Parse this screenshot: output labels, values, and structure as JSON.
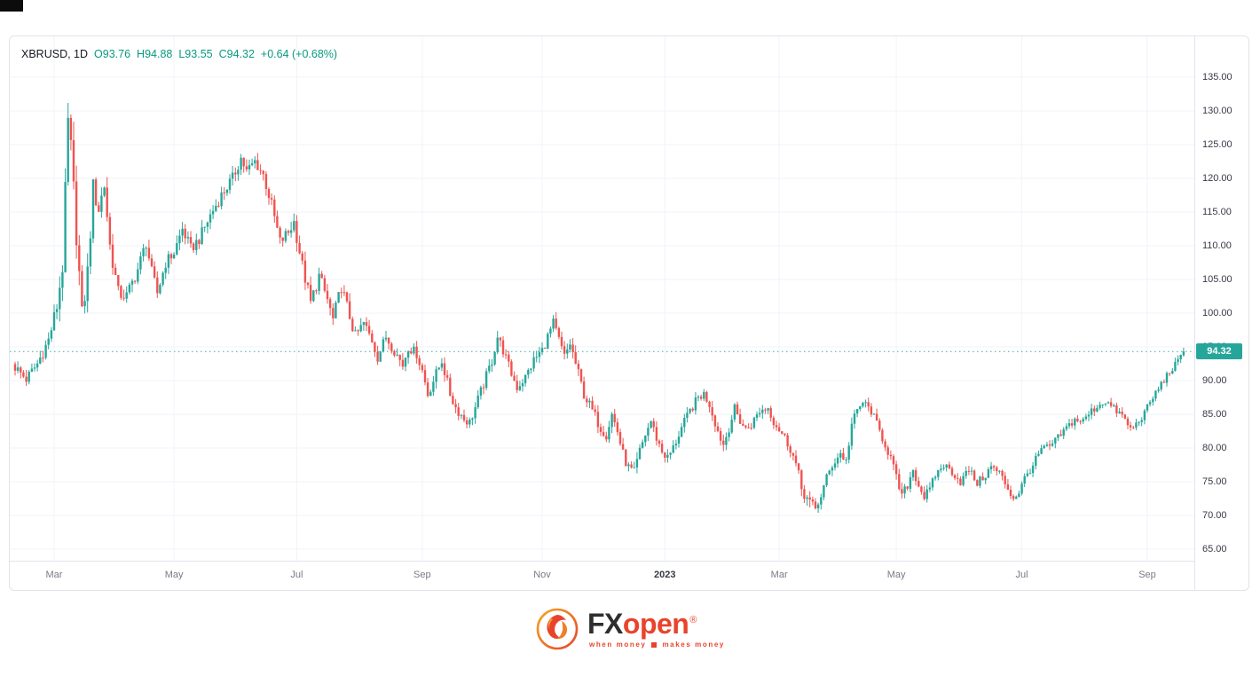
{
  "legend": {
    "symbol": "XBRUSD, 1D",
    "open": "O93.76",
    "high": "H94.88",
    "low": "L93.55",
    "close": "C94.32",
    "change": "+0.64 (+0.68%)"
  },
  "price_axis": {
    "ticks": [
      "135.00",
      "130.00",
      "125.00",
      "120.00",
      "115.00",
      "110.00",
      "105.00",
      "100.00",
      "95.00",
      "90.00",
      "85.00",
      "80.00",
      "75.00",
      "70.00",
      "65.00"
    ],
    "badge": "94.32"
  },
  "time_axis": {
    "labels": [
      {
        "text": "Mar",
        "i": 14
      },
      {
        "text": "May",
        "i": 57
      },
      {
        "text": "Jul",
        "i": 101
      },
      {
        "text": "Sep",
        "i": 146
      },
      {
        "text": "Nov",
        "i": 189
      },
      {
        "text": "2023",
        "i": 233,
        "year": true
      },
      {
        "text": "Mar",
        "i": 274
      },
      {
        "text": "May",
        "i": 316
      },
      {
        "text": "Jul",
        "i": 361
      },
      {
        "text": "Sep",
        "i": 406
      }
    ]
  },
  "logo": {
    "brand_fx": "FX",
    "brand_open": "open",
    "reg": "®",
    "tagline_left": "when money",
    "tagline_right": "makes money"
  },
  "chart_data": {
    "type": "candlestick",
    "symbol": "XBRUSD",
    "timeframe": "1D",
    "quote": {
      "open": 93.76,
      "high": 94.88,
      "low": 93.55,
      "close": 94.32,
      "change": 0.64,
      "change_pct": 0.68
    },
    "y_axis": {
      "min": 65,
      "max": 135,
      "step": 5
    },
    "grid": true,
    "colors": {
      "up": "#26a69a",
      "down": "#ef5350",
      "accent": "#089981",
      "price_line": "#26a69a",
      "grid": "#f0f3fa",
      "border": "#e0e3eb"
    },
    "num_candles": 420,
    "anchors": [
      [
        0,
        92,
        2.4
      ],
      [
        4,
        90.2,
        2.4
      ],
      [
        8,
        92.5,
        2.4
      ],
      [
        12,
        96,
        2.8
      ],
      [
        15,
        101,
        3.6
      ],
      [
        17,
        107,
        5
      ],
      [
        19,
        128,
        6.5
      ],
      [
        20,
        124,
        6.5
      ],
      [
        22,
        112,
        6
      ],
      [
        24,
        99.5,
        5
      ],
      [
        26,
        106,
        5
      ],
      [
        28,
        118.5,
        4.6
      ],
      [
        30,
        115.5,
        4.2
      ],
      [
        32,
        119,
        4
      ],
      [
        34,
        110,
        3.6
      ],
      [
        37,
        103,
        3.2
      ],
      [
        40,
        102.5,
        3
      ],
      [
        44,
        106.5,
        2.8
      ],
      [
        47,
        110.5,
        2.8
      ],
      [
        49,
        106,
        2.8
      ],
      [
        51,
        103,
        2.8
      ],
      [
        54,
        107.5,
        2.6
      ],
      [
        57,
        109,
        2.6
      ],
      [
        60,
        112.5,
        2.6
      ],
      [
        63,
        109.5,
        2.6
      ],
      [
        66,
        111,
        2.5
      ],
      [
        70,
        114.5,
        2.5
      ],
      [
        74,
        117.5,
        2.5
      ],
      [
        78,
        120,
        2.5
      ],
      [
        81,
        123,
        2.5
      ],
      [
        83,
        121,
        2.5
      ],
      [
        86,
        122.5,
        2.4
      ],
      [
        89,
        120.5,
        2.4
      ],
      [
        92,
        116,
        2.8
      ],
      [
        95,
        110.5,
        3
      ],
      [
        98,
        112,
        2.8
      ],
      [
        100,
        113.5,
        2.8
      ],
      [
        103,
        107,
        3
      ],
      [
        106,
        101.5,
        3
      ],
      [
        109,
        105.5,
        2.8
      ],
      [
        112,
        102,
        2.8
      ],
      [
        114,
        99,
        2.9
      ],
      [
        117,
        104,
        2.7
      ],
      [
        120,
        99.5,
        2.7
      ],
      [
        122,
        96.5,
        2.7
      ],
      [
        125,
        98.5,
        2.5
      ],
      [
        128,
        96,
        2.4
      ],
      [
        130,
        93.5,
        2.4
      ],
      [
        133,
        96.5,
        2.3
      ],
      [
        136,
        94.5,
        2.3
      ],
      [
        139,
        92.3,
        2.3
      ],
      [
        141,
        95,
        2.2
      ],
      [
        144,
        94,
        2.2
      ],
      [
        146,
        91.5,
        2.3
      ],
      [
        148,
        88,
        2.4
      ],
      [
        151,
        91,
        2.3
      ],
      [
        153,
        93,
        2.3
      ],
      [
        156,
        88,
        2.3
      ],
      [
        158,
        86,
        2.2
      ],
      [
        161,
        84.3,
        2.2
      ],
      [
        163,
        83.8,
        2.2
      ],
      [
        165,
        86,
        2.2
      ],
      [
        168,
        89.5,
        2.2
      ],
      [
        171,
        93,
        2.3
      ],
      [
        173,
        96.5,
        2.3
      ],
      [
        175,
        94.5,
        2.2
      ],
      [
        178,
        91,
        2.2
      ],
      [
        180,
        89,
        2.2
      ],
      [
        183,
        90.5,
        2.2
      ],
      [
        186,
        93,
        2.2
      ],
      [
        189,
        94.5,
        2.3
      ],
      [
        191,
        96.5,
        2.3
      ],
      [
        193,
        98.5,
        2.3
      ],
      [
        195,
        96,
        2.3
      ],
      [
        197,
        93.5,
        2.3
      ],
      [
        199,
        95.5,
        2.2
      ],
      [
        202,
        91,
        2.4
      ],
      [
        204,
        88,
        2.4
      ],
      [
        207,
        85.5,
        2.4
      ],
      [
        210,
        83,
        2.4
      ],
      [
        212,
        82,
        2.3
      ],
      [
        214,
        85,
        2.2
      ],
      [
        216,
        82.5,
        2.3
      ],
      [
        218,
        79,
        2.5
      ],
      [
        220,
        77,
        2.5
      ],
      [
        222,
        76.3,
        2.4
      ],
      [
        224,
        79.5,
        2.2
      ],
      [
        226,
        82,
        2.1
      ],
      [
        228,
        84,
        2
      ],
      [
        230,
        81.5,
        2.1
      ],
      [
        232,
        79.5,
        2.2
      ],
      [
        234,
        78.5,
        2.2
      ],
      [
        236,
        80,
        2.1
      ],
      [
        239,
        83,
        2
      ],
      [
        242,
        85.5,
        2
      ],
      [
        245,
        87.5,
        2
      ],
      [
        247,
        88,
        2
      ],
      [
        249,
        86.5,
        2
      ],
      [
        252,
        82.5,
        2.1
      ],
      [
        254,
        80.5,
        2.1
      ],
      [
        256,
        83,
        2
      ],
      [
        258,
        85.8,
        2
      ],
      [
        260,
        84,
        2
      ],
      [
        262,
        82.8,
        2
      ],
      [
        264,
        83.5,
        2
      ],
      [
        267,
        85.5,
        2
      ],
      [
        270,
        86,
        2
      ],
      [
        272,
        84,
        2
      ],
      [
        274,
        82.8,
        2
      ],
      [
        276,
        81.5,
        2.1
      ],
      [
        278,
        80,
        2.2
      ],
      [
        280,
        77.5,
        2.6
      ],
      [
        282,
        74,
        2.8
      ],
      [
        285,
        71.8,
        2.6
      ],
      [
        287,
        70.9,
        2.4
      ],
      [
        289,
        73,
        2.3
      ],
      [
        291,
        75.5,
        2.2
      ],
      [
        293,
        77.5,
        2.1
      ],
      [
        296,
        79.2,
        2
      ],
      [
        298,
        78,
        1.9
      ],
      [
        300,
        83.5,
        2.2
      ],
      [
        302,
        85.5,
        1.9
      ],
      [
        304,
        86.8,
        1.9
      ],
      [
        307,
        85.5,
        1.8
      ],
      [
        310,
        82.5,
        1.9
      ],
      [
        312,
        80.5,
        1.9
      ],
      [
        314,
        78.5,
        2
      ],
      [
        316,
        75.5,
        2.1
      ],
      [
        318,
        72.8,
        2.2
      ],
      [
        320,
        74.5,
        2
      ],
      [
        322,
        76.8,
        1.9
      ],
      [
        324,
        74.5,
        1.9
      ],
      [
        326,
        72.8,
        1.9
      ],
      [
        328,
        73.8,
        1.8
      ],
      [
        330,
        76,
        1.8
      ],
      [
        333,
        77.5,
        1.8
      ],
      [
        336,
        76.5,
        1.8
      ],
      [
        339,
        75,
        1.8
      ],
      [
        342,
        76.8,
        1.7
      ],
      [
        345,
        74.8,
        1.7
      ],
      [
        348,
        76,
        1.7
      ],
      [
        350,
        77.2,
        1.7
      ],
      [
        353,
        76.3,
        1.7
      ],
      [
        356,
        74,
        1.8
      ],
      [
        358,
        72.5,
        1.8
      ],
      [
        360,
        73.5,
        1.7
      ],
      [
        362,
        75.5,
        1.7
      ],
      [
        365,
        77.5,
        1.7
      ],
      [
        368,
        79.8,
        1.7
      ],
      [
        371,
        80.2,
        1.6
      ],
      [
        374,
        81.5,
        1.6
      ],
      [
        377,
        83,
        1.6
      ],
      [
        380,
        84.2,
        1.6
      ],
      [
        383,
        84,
        1.6
      ],
      [
        386,
        85.5,
        1.6
      ],
      [
        389,
        86.5,
        1.6
      ],
      [
        391,
        87,
        1.6
      ],
      [
        394,
        85.8,
        1.6
      ],
      [
        397,
        84.8,
        1.6
      ],
      [
        400,
        82.8,
        1.7
      ],
      [
        402,
        83.5,
        1.6
      ],
      [
        405,
        85.2,
        1.6
      ],
      [
        408,
        87.5,
        1.6
      ],
      [
        411,
        89.5,
        1.6
      ],
      [
        414,
        91.3,
        1.5
      ],
      [
        417,
        92.8,
        1.5
      ],
      [
        419,
        94.1,
        1.4
      ]
    ]
  }
}
